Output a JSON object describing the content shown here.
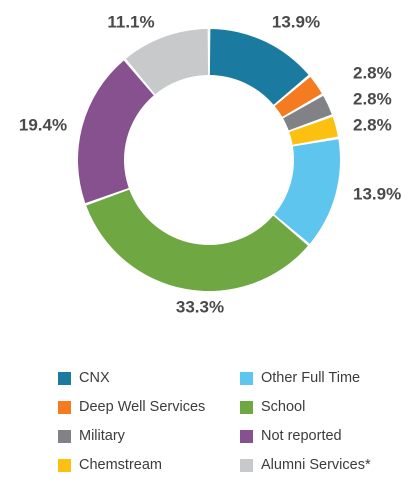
{
  "chart_data": {
    "type": "pie",
    "variant": "donut",
    "slices": [
      {
        "label": "CNX",
        "value": 13.9,
        "value_label": "13.9%",
        "color": "#1a7aa0"
      },
      {
        "label": "Deep Well Services",
        "value": 2.8,
        "value_label": "2.8%",
        "color": "#f47b20"
      },
      {
        "label": "Military",
        "value": 2.8,
        "value_label": "2.8%",
        "color": "#808285"
      },
      {
        "label": "Chemstream",
        "value": 2.8,
        "value_label": "2.8%",
        "color": "#fcc010"
      },
      {
        "label": "Other Full Time",
        "value": 13.9,
        "value_label": "13.9%",
        "color": "#5ec5ee"
      },
      {
        "label": "School",
        "value": 33.3,
        "value_label": "33.3%",
        "color": "#6fa842"
      },
      {
        "label": "Not reported",
        "value": 19.4,
        "value_label": "19.4%",
        "color": "#87508f"
      },
      {
        "label": "Alumni Services*",
        "value": 11.1,
        "value_label": "11.1%",
        "color": "#c8c9cb"
      }
    ],
    "legend": {
      "placement": "bottom",
      "columns": [
        [
          "CNX",
          "Deep Well Services",
          "Military",
          "Chemstream"
        ],
        [
          "Other Full Time",
          "School",
          "Not reported",
          "Alumni Services*"
        ]
      ]
    }
  }
}
